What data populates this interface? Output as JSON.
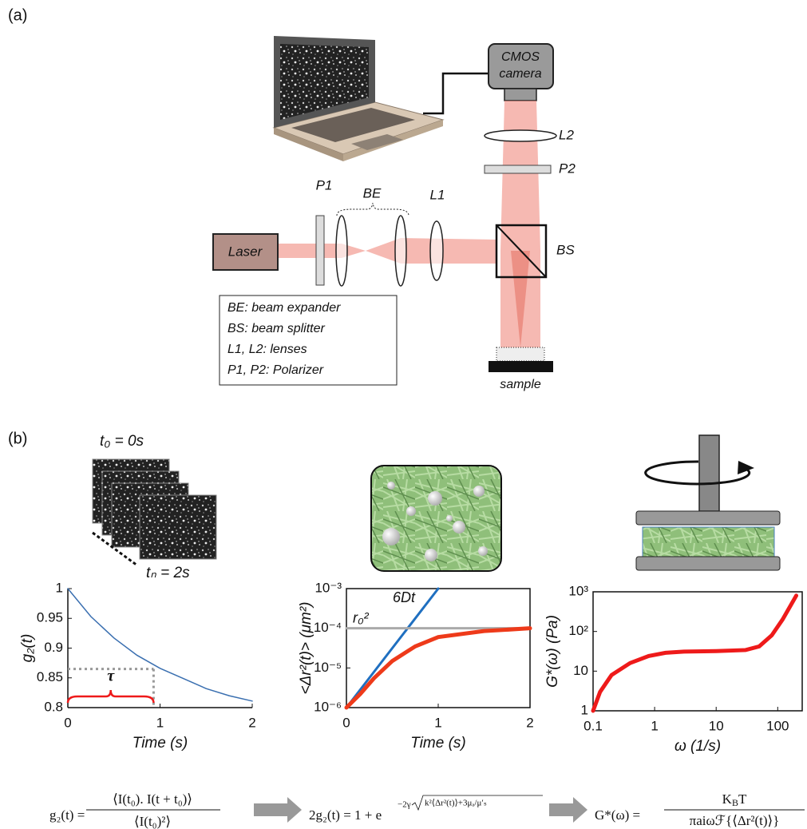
{
  "panel_a": {
    "label": "(a)",
    "camera": [
      "CMOS",
      "camera"
    ],
    "labels": {
      "L2": "L2",
      "P2": "P2",
      "P1": "P1",
      "BE": "BE",
      "L1": "L1",
      "BS": "BS"
    },
    "laser": "Laser",
    "sample": "sample",
    "legend": [
      "BE: beam expander",
      "BS: beam splitter",
      "L1, L2: lenses",
      "P1, P2: Polarizer"
    ]
  },
  "panel_b": {
    "label": "(b)",
    "t0": "t₀ = 0s",
    "tn": "tₙ = 2s"
  },
  "chart_data": [
    {
      "type": "line",
      "xlabel": "Time (s)",
      "ylabel": "g₂(t)",
      "xlim": [
        0,
        2
      ],
      "ylim": [
        0.8,
        1
      ],
      "xticks": [
        0,
        1,
        2
      ],
      "yticks": [
        0.8,
        0.85,
        0.9,
        0.95,
        1
      ],
      "box": false,
      "series": [
        {
          "color": "#3a6fb0",
          "x": [
            0,
            0.25,
            0.5,
            0.75,
            1,
            1.25,
            1.5,
            1.75,
            2
          ],
          "values": [
            1,
            0.953,
            0.917,
            0.888,
            0.866,
            0.849,
            0.832,
            0.82,
            0.811
          ]
        }
      ],
      "annotation": {
        "label": "τ",
        "x": 0.93,
        "y": 0.865
      }
    },
    {
      "type": "line",
      "xlabel": "Time (s)",
      "ylabel": "<Δr²(t)> (μm²)",
      "log_y": true,
      "xlim": [
        0,
        2
      ],
      "ylim": [
        1e-06,
        0.001
      ],
      "xticks": [
        0,
        1,
        2
      ],
      "yticks": [
        {
          "value": 1e-06,
          "label": "10⁻⁶"
        },
        {
          "value": 1e-05,
          "label": "10⁻⁵"
        },
        {
          "value": 0.0001,
          "label": "10⁻⁴"
        },
        {
          "value": 0.001,
          "label": "10⁻³"
        }
      ],
      "box": true,
      "series": [
        {
          "name": "6Dt",
          "color": "#1f6fc0",
          "x": [
            0,
            1
          ],
          "values": [
            1e-06,
            0.001
          ]
        },
        {
          "name": "r₀²",
          "color": "#aaaaaa",
          "x": [
            0,
            2
          ],
          "values": [
            0.0001,
            0.0001
          ]
        },
        {
          "color": "#ee3a1a",
          "x": [
            0,
            0.15,
            0.3,
            0.5,
            0.75,
            1,
            1.5,
            2
          ],
          "values": [
            1e-06,
            2.2e-06,
            5.5e-06,
            1.5e-05,
            3.5e-05,
            6e-05,
            8.5e-05,
            0.0001
          ]
        }
      ]
    },
    {
      "type": "line",
      "xlabel": "ω (1/s)",
      "ylabel": "G*(ω) (Pa)",
      "log_x": true,
      "log_y": true,
      "xlim": [
        0.1,
        250
      ],
      "ylim": [
        1,
        1000
      ],
      "xticks": [
        0.1,
        1,
        10,
        100
      ],
      "yticks": [
        1,
        10,
        {
          "value": 100,
          "label": "10²"
        },
        {
          "value": 1000,
          "label": "10³"
        }
      ],
      "box": true,
      "series": [
        {
          "color": "#ee1a1a",
          "x": [
            0.1,
            0.13,
            0.2,
            0.4,
            0.8,
            1.5,
            3,
            10,
            30,
            50,
            80,
            120,
            200
          ],
          "values": [
            1,
            3,
            8,
            16,
            24,
            29,
            31,
            32,
            34,
            42,
            80,
            200,
            800
          ]
        }
      ]
    }
  ],
  "equations": [
    {
      "lhs": "g₂(t) =",
      "num": "⟨I(t₀). I(t + t₀)⟩",
      "den": "⟨I(t₀)²⟩"
    },
    {
      "lhs": "2g₂(t) = 1 + e",
      "exp": "−2γ",
      "radicand": "k²⟨Δr²(t)⟩+3μₐ/μ′ₛ"
    },
    {
      "lhs": "G*(ω) =",
      "num": [
        "K",
        "B",
        "T"
      ],
      "den": "πaiωℱ{⟨Δr²(t)⟩}"
    }
  ]
}
